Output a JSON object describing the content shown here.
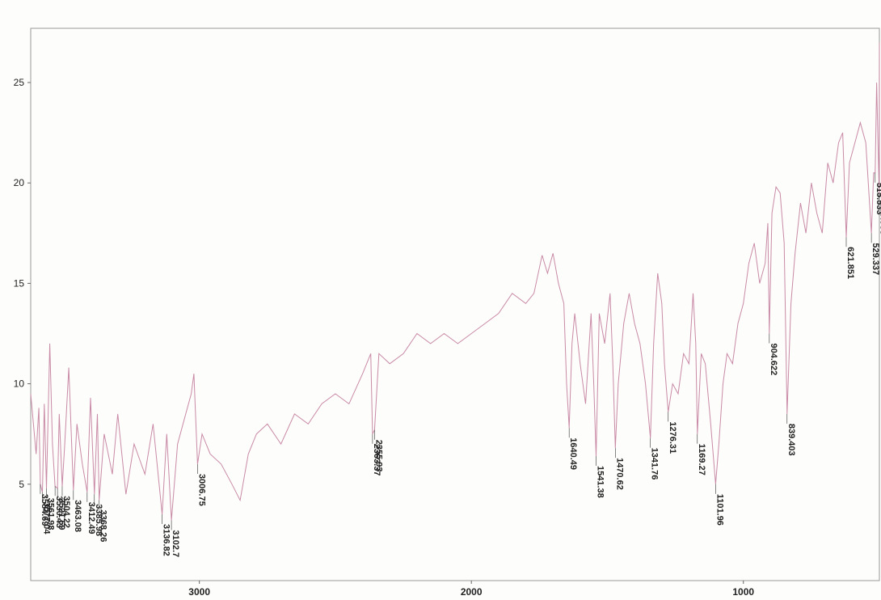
{
  "chart_data": {
    "type": "line",
    "series": [
      {
        "color": "#c98aa6",
        "x": [
          3620,
          3600,
          3590,
          3584.69,
          3577.04,
          3570,
          3561.98,
          3550,
          3540,
          3530.43,
          3521.59,
          3515,
          3504.22,
          3495,
          3480,
          3463.08,
          3450,
          3430,
          3412.49,
          3400,
          3385.98,
          3375,
          3368.26,
          3350,
          3320,
          3300,
          3270,
          3240,
          3200,
          3170,
          3136.82,
          3120,
          3102.7,
          3080,
          3050,
          3030,
          3020,
          3006.75,
          2990,
          2960,
          2920,
          2880,
          2850,
          2820,
          2790,
          2750,
          2700,
          2650,
          2600,
          2550,
          2500,
          2450,
          2400,
          2370,
          2363.37,
          2355.93,
          2340,
          2300,
          2250,
          2200,
          2150,
          2100,
          2050,
          2000,
          1950,
          1900,
          1850,
          1800,
          1770,
          1740,
          1720,
          1700,
          1680,
          1660,
          1650,
          1640.49,
          1630,
          1620,
          1600,
          1580,
          1560,
          1550,
          1541.38,
          1530,
          1510,
          1490,
          1480,
          1470.62,
          1460,
          1440,
          1420,
          1400,
          1380,
          1360,
          1341.76,
          1330,
          1315,
          1300,
          1290,
          1276.31,
          1260,
          1240,
          1220,
          1200,
          1185,
          1175,
          1169.27,
          1155,
          1140,
          1120,
          1101.96,
          1090,
          1075,
          1060,
          1040,
          1020,
          1000,
          980,
          960,
          940,
          920,
          910,
          904.622,
          895,
          880,
          865,
          850,
          839.403,
          825,
          810,
          790,
          770,
          750,
          730,
          710,
          690,
          670,
          650,
          635,
          621.851,
          610,
          590,
          570,
          550,
          529.337,
          521,
          515.533,
          510,
          500.963,
          500
        ],
        "values": [
          9.5,
          6.5,
          8.8,
          5.0,
          4.6,
          9,
          4.8,
          12,
          7,
          4.9,
          4.8,
          8.5,
          4.9,
          7,
          10.8,
          4.7,
          8,
          6,
          4.6,
          9.3,
          4.5,
          8.5,
          4.2,
          7.5,
          5.5,
          8.5,
          4.5,
          7,
          5.5,
          8,
          3.5,
          7.5,
          3.2,
          7,
          8.5,
          9.5,
          10.5,
          6.0,
          7.5,
          6.5,
          6,
          5,
          4.2,
          6.5,
          7.5,
          8,
          7,
          8.5,
          8,
          9,
          9.5,
          9,
          10.5,
          11.5,
          7.5,
          7.7,
          11.5,
          11,
          11.5,
          12.5,
          12,
          12.5,
          12,
          12.5,
          13,
          13.5,
          14.5,
          14,
          14.5,
          16.4,
          15.5,
          16.5,
          15,
          14,
          10,
          7.8,
          12,
          13.5,
          11,
          9,
          13.5,
          10,
          6.4,
          13.5,
          12,
          14.5,
          11,
          6.8,
          10,
          13,
          14.5,
          13,
          12,
          10,
          7.3,
          12,
          15.5,
          14,
          11,
          8.6,
          10,
          9.5,
          11.5,
          11,
          14.5,
          12,
          7.5,
          11.5,
          11,
          8,
          5.0,
          7,
          10,
          11.5,
          11,
          13,
          14,
          16,
          17,
          15,
          16,
          18,
          12.5,
          18.5,
          19.8,
          19.5,
          17,
          8.5,
          14,
          16.5,
          19,
          17.5,
          20,
          18.5,
          17.5,
          21,
          20,
          22,
          22.5,
          17.3,
          21,
          22,
          23,
          22,
          17.5,
          20.5,
          20.5,
          25,
          19.5,
          27
        ]
      }
    ],
    "peaks": {
      "x": [
        3584.69,
        3577.04,
        3561.98,
        3530.43,
        3521.59,
        3504.22,
        3463.08,
        3412.49,
        3385.98,
        3368.26,
        3136.82,
        3102.7,
        3006.75,
        2355.93,
        2363.37,
        1640.49,
        1541.38,
        1470.62,
        1341.76,
        1276.31,
        1169.27,
        1101.96,
        904.622,
        839.403,
        621.851,
        529.337,
        500.963,
        515.533
      ],
      "y": [
        5.0,
        4.6,
        4.8,
        4.9,
        4.8,
        4.9,
        4.7,
        4.6,
        4.5,
        4.2,
        3.5,
        3.2,
        6.0,
        7.7,
        7.5,
        7.8,
        6.4,
        6.8,
        7.3,
        8.6,
        7.5,
        5.0,
        12.5,
        8.5,
        17.3,
        17.5,
        19.5,
        20.5
      ]
    },
    "xlim": [
      3620,
      500
    ],
    "ylim": [
      0.2,
      27.7
    ],
    "xticks": [
      3000,
      2000,
      1000
    ],
    "yticks": [
      5,
      10,
      15,
      20,
      25
    ],
    "grid": false
  }
}
